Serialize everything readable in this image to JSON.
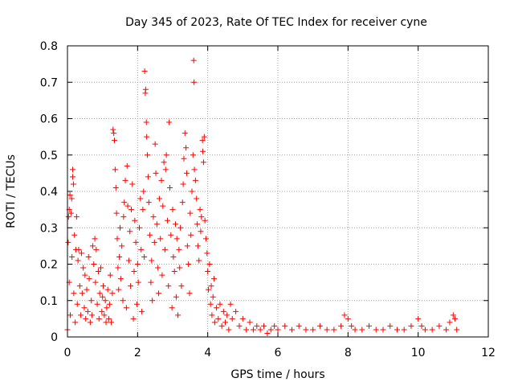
{
  "chart_data": {
    "type": "scatter",
    "title": "Day 345 of 2023, Rate Of TEC Index for receiver cyne",
    "xlabel": "GPS time / hours",
    "ylabel": "ROTI / TECUs",
    "xlim": [
      0,
      12
    ],
    "ylim": [
      0,
      0.8
    ],
    "xticks": [
      "0",
      "2",
      "4",
      "6",
      "8",
      "10",
      "12"
    ],
    "yticks": [
      "0",
      "0.1",
      "0.2",
      "0.3",
      "0.4",
      "0.5",
      "0.6",
      "0.7",
      "0.8"
    ],
    "grid": true,
    "marker": "plus",
    "color": "#ff0000",
    "series": [
      {
        "points": [
          [
            0.0,
            0.02
          ],
          [
            0.02,
            0.26
          ],
          [
            0.03,
            0.33
          ],
          [
            0.05,
            0.15
          ],
          [
            0.05,
            0.35
          ],
          [
            0.07,
            0.39
          ],
          [
            0.08,
            0.06
          ],
          [
            0.1,
            0.34
          ],
          [
            0.12,
            0.38
          ],
          [
            0.13,
            0.22
          ],
          [
            0.15,
            0.44
          ],
          [
            0.15,
            0.46
          ],
          [
            0.17,
            0.42
          ],
          [
            0.18,
            0.12
          ],
          [
            0.2,
            0.28
          ],
          [
            0.22,
            0.04
          ],
          [
            0.24,
            0.24
          ],
          [
            0.26,
            0.33
          ],
          [
            0.28,
            0.09
          ],
          [
            0.3,
            0.21
          ],
          [
            0.32,
            0.24
          ],
          [
            0.35,
            0.14
          ],
          [
            0.38,
            0.06
          ],
          [
            0.4,
            0.23
          ],
          [
            0.42,
            0.12
          ],
          [
            0.45,
            0.19
          ],
          [
            0.48,
            0.08
          ],
          [
            0.5,
            0.17
          ],
          [
            0.52,
            0.05
          ],
          [
            0.55,
            0.13
          ],
          [
            0.58,
            0.07
          ],
          [
            0.6,
            0.22
          ],
          [
            0.62,
            0.16
          ],
          [
            0.65,
            0.04
          ],
          [
            0.68,
            0.1
          ],
          [
            0.7,
            0.06
          ],
          [
            0.72,
            0.25
          ],
          [
            0.75,
            0.2
          ],
          [
            0.78,
            0.27
          ],
          [
            0.8,
            0.15
          ],
          [
            0.82,
            0.24
          ],
          [
            0.85,
            0.09
          ],
          [
            0.88,
            0.18
          ],
          [
            0.9,
            0.05
          ],
          [
            0.92,
            0.12
          ],
          [
            0.95,
            0.19
          ],
          [
            0.98,
            0.07
          ],
          [
            1.0,
            0.11
          ],
          [
            1.02,
            0.14
          ],
          [
            1.05,
            0.06
          ],
          [
            1.08,
            0.1
          ],
          [
            1.1,
            0.04
          ],
          [
            1.12,
            0.08
          ],
          [
            1.15,
            0.13
          ],
          [
            1.18,
            0.05
          ],
          [
            1.2,
            0.09
          ],
          [
            1.22,
            0.17
          ],
          [
            1.25,
            0.04
          ],
          [
            1.28,
            0.12
          ],
          [
            1.3,
            0.57
          ],
          [
            1.32,
            0.56
          ],
          [
            1.34,
            0.54
          ],
          [
            1.36,
            0.46
          ],
          [
            1.38,
            0.41
          ],
          [
            1.4,
            0.34
          ],
          [
            1.42,
            0.27
          ],
          [
            1.44,
            0.19
          ],
          [
            1.46,
            0.13
          ],
          [
            1.48,
            0.22
          ],
          [
            1.5,
            0.3
          ],
          [
            1.52,
            0.16
          ],
          [
            1.55,
            0.25
          ],
          [
            1.58,
            0.1
          ],
          [
            1.6,
            0.33
          ],
          [
            1.62,
            0.37
          ],
          [
            1.65,
            0.43
          ],
          [
            1.68,
            0.08
          ],
          [
            1.7,
            0.47
          ],
          [
            1.72,
            0.36
          ],
          [
            1.75,
            0.21
          ],
          [
            1.78,
            0.29
          ],
          [
            1.8,
            0.14
          ],
          [
            1.82,
            0.35
          ],
          [
            1.85,
            0.42
          ],
          [
            1.88,
            0.05
          ],
          [
            1.9,
            0.18
          ],
          [
            1.92,
            0.32
          ],
          [
            1.95,
            0.26
          ],
          [
            1.98,
            0.09
          ],
          [
            2.0,
            0.2
          ],
          [
            2.02,
            0.15
          ],
          [
            2.05,
            0.3
          ],
          [
            2.08,
            0.38
          ],
          [
            2.1,
            0.24
          ],
          [
            2.12,
            0.07
          ],
          [
            2.15,
            0.35
          ],
          [
            2.17,
            0.4
          ],
          [
            2.19,
            0.22
          ],
          [
            2.2,
            0.73
          ],
          [
            2.22,
            0.67
          ],
          [
            2.23,
            0.68
          ],
          [
            2.25,
            0.59
          ],
          [
            2.26,
            0.55
          ],
          [
            2.28,
            0.5
          ],
          [
            2.3,
            0.44
          ],
          [
            2.32,
            0.37
          ],
          [
            2.35,
            0.28
          ],
          [
            2.38,
            0.15
          ],
          [
            2.4,
            0.21
          ],
          [
            2.42,
            0.1
          ],
          [
            2.45,
            0.33
          ],
          [
            2.48,
            0.26
          ],
          [
            2.5,
            0.53
          ],
          [
            2.52,
            0.45
          ],
          [
            2.55,
            0.31
          ],
          [
            2.58,
            0.19
          ],
          [
            2.6,
            0.12
          ],
          [
            2.62,
            0.38
          ],
          [
            2.65,
            0.27
          ],
          [
            2.68,
            0.43
          ],
          [
            2.7,
            0.17
          ],
          [
            2.72,
            0.36
          ],
          [
            2.75,
            0.48
          ],
          [
            2.78,
            0.24
          ],
          [
            2.8,
            0.46
          ],
          [
            2.82,
            0.5
          ],
          [
            2.85,
            0.32
          ],
          [
            2.88,
            0.14
          ],
          [
            2.9,
            0.59
          ],
          [
            2.92,
            0.41
          ],
          [
            2.95,
            0.28
          ],
          [
            2.98,
            0.08
          ],
          [
            3.0,
            0.35
          ],
          [
            3.02,
            0.22
          ],
          [
            3.05,
            0.18
          ],
          [
            3.08,
            0.31
          ],
          [
            3.1,
            0.11
          ],
          [
            3.12,
            0.27
          ],
          [
            3.15,
            0.06
          ],
          [
            3.18,
            0.24
          ],
          [
            3.2,
            0.19
          ],
          [
            3.22,
            0.3
          ],
          [
            3.25,
            0.14
          ],
          [
            3.28,
            0.37
          ],
          [
            3.3,
            0.42
          ],
          [
            3.32,
            0.49
          ],
          [
            3.35,
            0.56
          ],
          [
            3.38,
            0.52
          ],
          [
            3.4,
            0.45
          ],
          [
            3.42,
            0.25
          ],
          [
            3.45,
            0.2
          ],
          [
            3.48,
            0.12
          ],
          [
            3.5,
            0.34
          ],
          [
            3.52,
            0.28
          ],
          [
            3.55,
            0.4
          ],
          [
            3.58,
            0.5
          ],
          [
            3.6,
            0.76
          ],
          [
            3.61,
            0.7
          ],
          [
            3.62,
            0.46
          ],
          [
            3.65,
            0.43
          ],
          [
            3.68,
            0.38
          ],
          [
            3.7,
            0.31
          ],
          [
            3.72,
            0.25
          ],
          [
            3.75,
            0.21
          ],
          [
            3.78,
            0.35
          ],
          [
            3.8,
            0.29
          ],
          [
            3.82,
            0.33
          ],
          [
            3.85,
            0.54
          ],
          [
            3.86,
            0.51
          ],
          [
            3.88,
            0.48
          ],
          [
            3.9,
            0.55
          ],
          [
            3.92,
            0.32
          ],
          [
            3.95,
            0.27
          ],
          [
            3.98,
            0.23
          ],
          [
            4.0,
            0.18
          ],
          [
            4.02,
            0.13
          ],
          [
            4.05,
            0.2
          ],
          [
            4.08,
            0.09
          ],
          [
            4.1,
            0.14
          ],
          [
            4.12,
            0.06
          ],
          [
            4.15,
            0.11
          ],
          [
            4.18,
            0.16
          ],
          [
            4.2,
            0.04
          ],
          [
            4.25,
            0.08
          ],
          [
            4.3,
            0.05
          ],
          [
            4.35,
            0.09
          ],
          [
            4.4,
            0.03
          ],
          [
            4.45,
            0.07
          ],
          [
            4.5,
            0.04
          ],
          [
            4.55,
            0.06
          ],
          [
            4.6,
            0.02
          ],
          [
            4.65,
            0.09
          ],
          [
            4.7,
            0.05
          ],
          [
            4.8,
            0.07
          ],
          [
            4.9,
            0.03
          ],
          [
            5.0,
            0.05
          ],
          [
            5.1,
            0.02
          ],
          [
            5.2,
            0.04
          ],
          [
            5.3,
            0.02
          ],
          [
            5.4,
            0.03
          ],
          [
            5.5,
            0.02
          ],
          [
            5.6,
            0.03
          ],
          [
            5.7,
            0.01
          ],
          [
            5.8,
            0.02
          ],
          [
            5.9,
            0.03
          ],
          [
            6.0,
            0.02
          ],
          [
            6.2,
            0.03
          ],
          [
            6.4,
            0.02
          ],
          [
            6.6,
            0.03
          ],
          [
            6.8,
            0.02
          ],
          [
            7.0,
            0.02
          ],
          [
            7.2,
            0.03
          ],
          [
            7.4,
            0.02
          ],
          [
            7.6,
            0.02
          ],
          [
            7.8,
            0.03
          ],
          [
            7.9,
            0.06
          ],
          [
            8.0,
            0.05
          ],
          [
            8.1,
            0.03
          ],
          [
            8.2,
            0.02
          ],
          [
            8.4,
            0.02
          ],
          [
            8.6,
            0.03
          ],
          [
            8.8,
            0.02
          ],
          [
            9.0,
            0.02
          ],
          [
            9.2,
            0.03
          ],
          [
            9.4,
            0.02
          ],
          [
            9.6,
            0.02
          ],
          [
            9.8,
            0.03
          ],
          [
            10.0,
            0.05
          ],
          [
            10.1,
            0.03
          ],
          [
            10.2,
            0.02
          ],
          [
            10.4,
            0.02
          ],
          [
            10.6,
            0.03
          ],
          [
            10.8,
            0.02
          ],
          [
            10.9,
            0.04
          ],
          [
            11.0,
            0.06
          ],
          [
            11.05,
            0.05
          ],
          [
            11.1,
            0.02
          ]
        ]
      }
    ]
  }
}
